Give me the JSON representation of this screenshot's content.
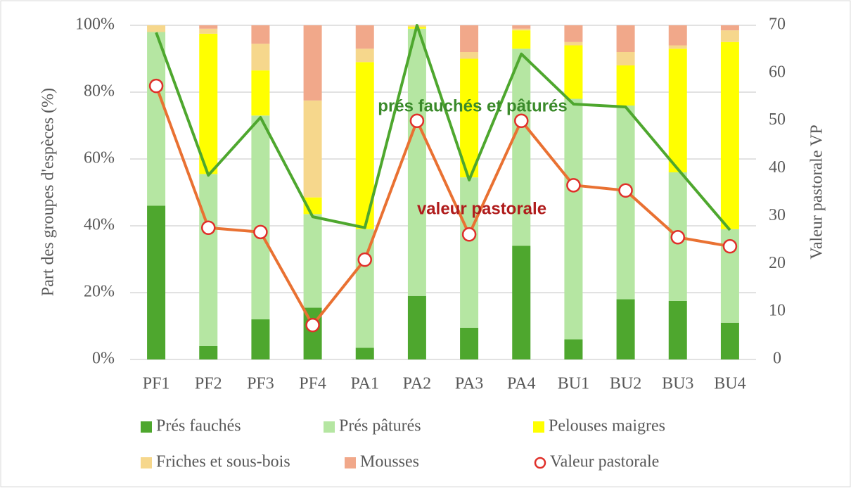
{
  "chart_data": {
    "type": "bar",
    "stacked": true,
    "categories": [
      "PF1",
      "PF2",
      "PF3",
      "PF4",
      "PA1",
      "PA2",
      "PA3",
      "PA4",
      "BU1",
      "BU2",
      "BU3",
      "BU4"
    ],
    "series": [
      {
        "name": "Prés fauchés",
        "color": "#4ea72e",
        "values": [
          46,
          4,
          12,
          15.5,
          3.5,
          19,
          9.5,
          34,
          6,
          18,
          17.5,
          11
        ]
      },
      {
        "name": "Prés pâturés",
        "color": "#b5e6a2",
        "values": [
          52,
          51.5,
          61,
          28,
          35.5,
          80,
          45,
          59,
          72,
          58,
          38.5,
          28
        ]
      },
      {
        "name": "Pelouses maigres",
        "color": "#ffff00",
        "values": [
          0,
          42,
          13.5,
          5,
          50,
          0.5,
          35.5,
          5.5,
          16,
          12,
          37,
          56
        ]
      },
      {
        "name": "Friches et sous-bois",
        "color": "#f6d78c",
        "values": [
          2,
          1.5,
          8,
          29,
          4,
          0.5,
          2,
          0.5,
          1,
          4,
          1,
          3.5
        ]
      },
      {
        "name": "Mousses",
        "color": "#f1a88a",
        "values": [
          0,
          1,
          5.5,
          22.5,
          7,
          0,
          8,
          1,
          5,
          8,
          6,
          1.5
        ]
      }
    ],
    "lines": [
      {
        "color": "#4ea72e",
        "axis": "y2",
        "values": [
          68.5,
          38.6,
          50.7,
          29.9,
          27.6,
          70,
          37.6,
          64,
          53.5,
          52.9,
          39.9,
          27.1
        ]
      },
      {
        "name": "Valeur pastorale",
        "color": "#e97132",
        "marker_color": "#e0302a",
        "axis": "y2",
        "values": [
          57.3,
          27.6,
          26.7,
          7.2,
          20.9,
          50,
          26.2,
          50,
          36.5,
          35.4,
          25.6,
          23.7
        ]
      }
    ],
    "annotations": [
      {
        "text": "prés fauchés et pâturés",
        "color": "#3a8a2a"
      },
      {
        "text": "valeur pastorale",
        "color": "#b01c1c"
      }
    ],
    "ylabel": "Part des groupes d'espèces (%)",
    "y2label": "Valeur pastorale VP",
    "ylim": [
      0,
      100
    ],
    "yticks": [
      {
        "value": 0,
        "label": "0%"
      },
      {
        "value": 20,
        "label": "20%"
      },
      {
        "value": 40,
        "label": "40%"
      },
      {
        "value": 60,
        "label": "60%"
      },
      {
        "value": 80,
        "label": "80%"
      },
      {
        "value": 100,
        "label": "100%"
      }
    ],
    "y2lim": [
      0,
      70
    ],
    "y2ticks": [
      0,
      10,
      20,
      30,
      40,
      50,
      60,
      70
    ],
    "grid": true
  }
}
